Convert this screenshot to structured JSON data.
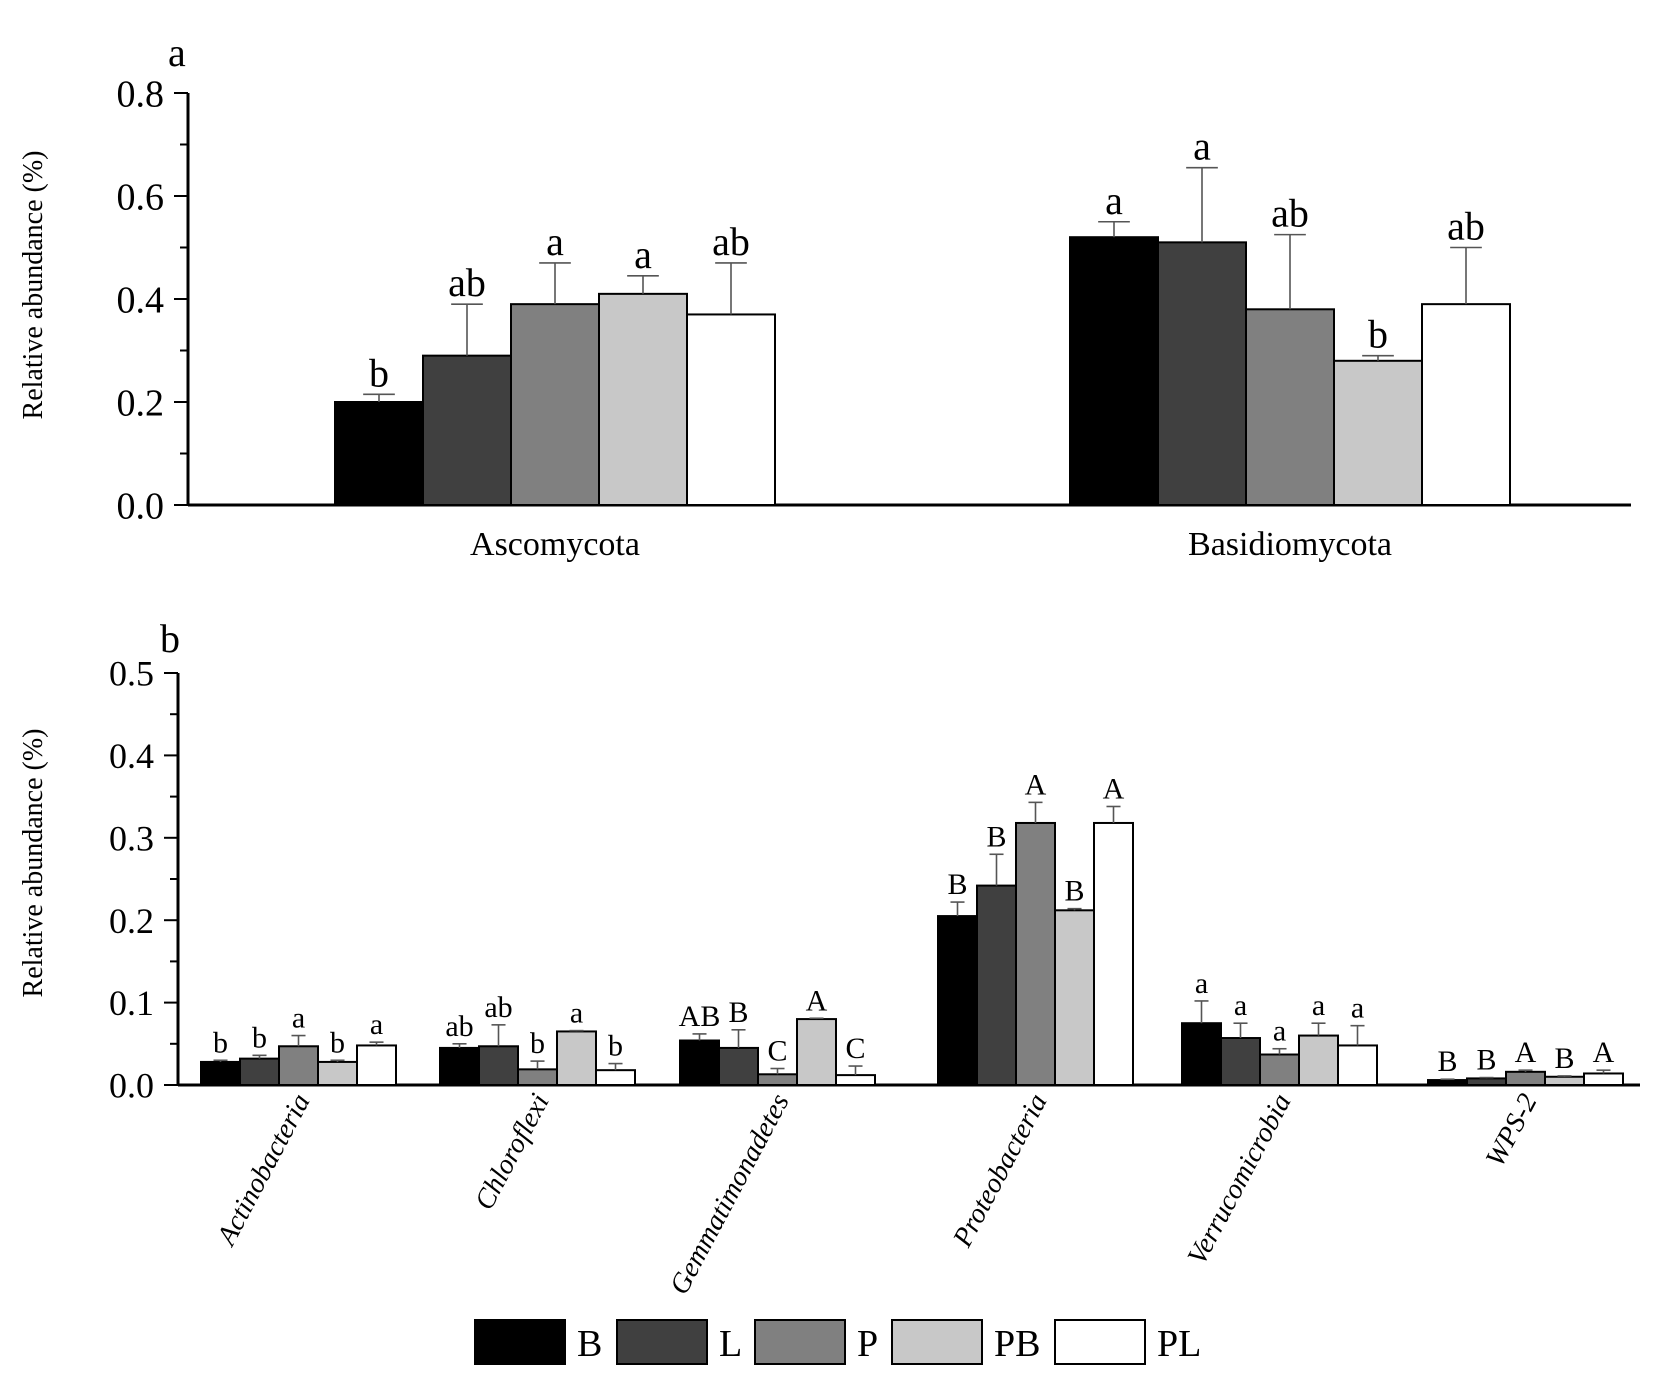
{
  "colors": {
    "B": "#000000",
    "L": "#404040",
    "P": "#808080",
    "PB": "#c8c8c8",
    "PL": "#ffffff"
  },
  "legend": [
    "B",
    "L",
    "P",
    "PB",
    "PL"
  ],
  "chart_data": [
    {
      "panel_label": "a",
      "type": "bar",
      "ylabel": "Relative abundance (%)",
      "ylim": [
        0,
        0.8
      ],
      "yticks": [
        "0.0",
        "0.2",
        "0.4",
        "0.6",
        "0.8"
      ],
      "categories": [
        "Ascomycota",
        "Basidiomycota"
      ],
      "series": [
        {
          "name": "B",
          "values": [
            0.2,
            0.52
          ],
          "errors": [
            0.015,
            0.03
          ],
          "letters": [
            "b",
            "a"
          ]
        },
        {
          "name": "L",
          "values": [
            0.29,
            0.51
          ],
          "errors": [
            0.1,
            0.145
          ],
          "letters": [
            "ab",
            "a"
          ]
        },
        {
          "name": "P",
          "values": [
            0.39,
            0.38
          ],
          "errors": [
            0.08,
            0.145
          ],
          "letters": [
            "a",
            "ab"
          ]
        },
        {
          "name": "PB",
          "values": [
            0.41,
            0.28
          ],
          "errors": [
            0.035,
            0.01
          ],
          "letters": [
            "a",
            "b"
          ]
        },
        {
          "name": "PL",
          "values": [
            0.37,
            0.39
          ],
          "errors": [
            0.1,
            0.11
          ],
          "letters": [
            "ab",
            "ab"
          ]
        }
      ]
    },
    {
      "panel_label": "b",
      "type": "bar",
      "ylabel": "Relative abundance (%)",
      "ylim": [
        0,
        0.5
      ],
      "yticks": [
        "0.0",
        "0.1",
        "0.2",
        "0.3",
        "0.4",
        "0.5"
      ],
      "categories": [
        "Actinobacteria",
        "Chloroflexi",
        "Gemmatimonadetes",
        "Proteobacteria",
        "Verrucomicrobia",
        "WPS-2"
      ],
      "series": [
        {
          "name": "B",
          "values": [
            0.028,
            0.045,
            0.054,
            0.205,
            0.075,
            0.006
          ],
          "errors": [
            0.002,
            0.005,
            0.008,
            0.017,
            0.027,
            0.001
          ],
          "letters": [
            "b",
            "ab",
            "AB",
            "B",
            "a",
            "B"
          ]
        },
        {
          "name": "L",
          "values": [
            0.032,
            0.047,
            0.045,
            0.242,
            0.057,
            0.008
          ],
          "errors": [
            0.004,
            0.026,
            0.022,
            0.038,
            0.018,
            0.001
          ],
          "letters": [
            "b",
            "ab",
            "B",
            "B",
            "a",
            "B"
          ]
        },
        {
          "name": "P",
          "values": [
            0.047,
            0.019,
            0.013,
            0.318,
            0.037,
            0.016
          ],
          "errors": [
            0.013,
            0.01,
            0.007,
            0.025,
            0.007,
            0.002
          ],
          "letters": [
            "a",
            "b",
            "C",
            "A",
            "a",
            "A"
          ]
        },
        {
          "name": "PB",
          "values": [
            0.028,
            0.065,
            0.08,
            0.212,
            0.06,
            0.01
          ],
          "errors": [
            0.002,
            0.001,
            0.001,
            0.002,
            0.015,
            0.001
          ],
          "letters": [
            "b",
            "a",
            "A",
            "B",
            "a",
            "B"
          ]
        },
        {
          "name": "PL",
          "values": [
            0.048,
            0.018,
            0.012,
            0.318,
            0.048,
            0.014
          ],
          "errors": [
            0.004,
            0.008,
            0.011,
            0.02,
            0.024,
            0.004
          ],
          "letters": [
            "a",
            "b",
            "C",
            "A",
            "a",
            "A"
          ]
        }
      ]
    }
  ]
}
